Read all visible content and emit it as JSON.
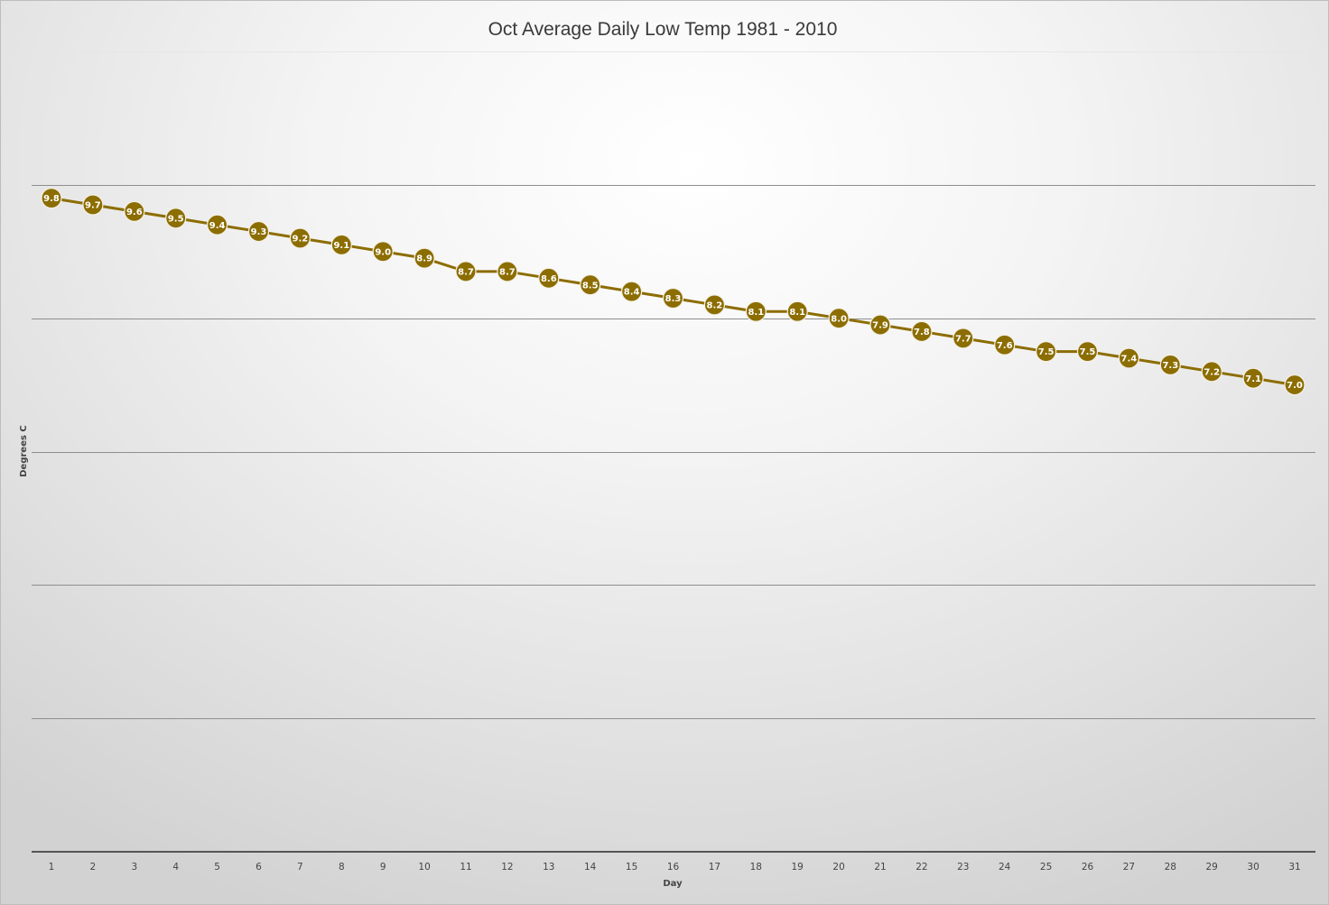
{
  "chart_data": {
    "type": "line",
    "title": "Oct Average Daily Low Temp 1981 - 2010",
    "xlabel": "Day",
    "ylabel": "Degrees C",
    "x": [
      1,
      2,
      3,
      4,
      5,
      6,
      7,
      8,
      9,
      10,
      11,
      12,
      13,
      14,
      15,
      16,
      17,
      18,
      19,
      20,
      21,
      22,
      23,
      24,
      25,
      26,
      27,
      28,
      29,
      30,
      31
    ],
    "series": [
      {
        "values": [
          9.8,
          9.7,
          9.6,
          9.5,
          9.4,
          9.3,
          9.2,
          9.1,
          9.0,
          8.9,
          8.7,
          8.7,
          8.6,
          8.5,
          8.4,
          8.3,
          8.2,
          8.1,
          8.1,
          8.0,
          7.9,
          7.8,
          7.7,
          7.6,
          7.5,
          7.5,
          7.4,
          7.3,
          7.2,
          7.1,
          7.0
        ],
        "labels": [
          "9.8",
          "9.7",
          "9.6",
          "9.5",
          "9.4",
          "9.3",
          "9.2",
          "9.1",
          "9.0",
          "8.9",
          "8.7",
          "8.7",
          "8.6",
          "8.5",
          "8.4",
          "8.3",
          "8.2",
          "8.1",
          "8.1",
          "8.0",
          "7.9",
          "7.8",
          "7.7",
          "7.6",
          "7.5",
          "7.5",
          "7.4",
          "7.3",
          "7.2",
          "7.1",
          "7.0"
        ],
        "color": "#8c6d00"
      }
    ],
    "ylim": [
      0,
      12
    ],
    "y_gridline_step": 2,
    "y_tick_labels_shown": false,
    "grid": true,
    "legend": "none",
    "background": "light gray radial gradient"
  }
}
